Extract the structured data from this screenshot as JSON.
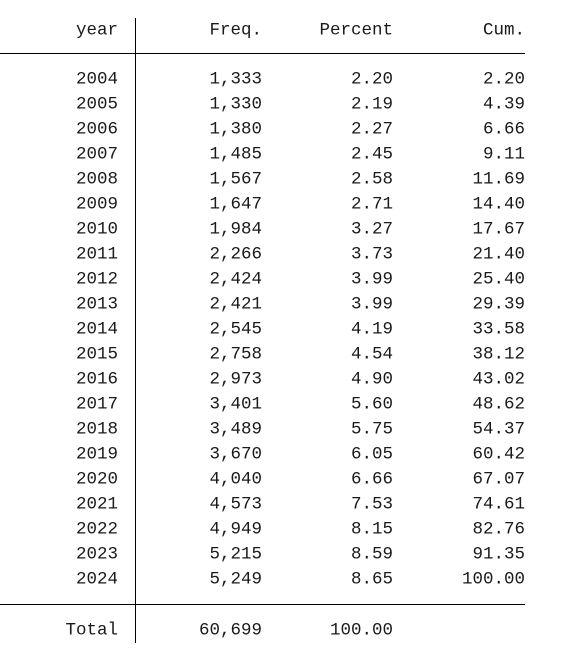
{
  "table": {
    "header": [
      "year",
      "Freq.",
      "Percent",
      "Cum."
    ],
    "rows": [
      [
        "2004",
        "1,333",
        "2.20",
        "2.20"
      ],
      [
        "2005",
        "1,330",
        "2.19",
        "4.39"
      ],
      [
        "2006",
        "1,380",
        "2.27",
        "6.66"
      ],
      [
        "2007",
        "1,485",
        "2.45",
        "9.11"
      ],
      [
        "2008",
        "1,567",
        "2.58",
        "11.69"
      ],
      [
        "2009",
        "1,647",
        "2.71",
        "14.40"
      ],
      [
        "2010",
        "1,984",
        "3.27",
        "17.67"
      ],
      [
        "2011",
        "2,266",
        "3.73",
        "21.40"
      ],
      [
        "2012",
        "2,424",
        "3.99",
        "25.40"
      ],
      [
        "2013",
        "2,421",
        "3.99",
        "29.39"
      ],
      [
        "2014",
        "2,545",
        "4.19",
        "33.58"
      ],
      [
        "2015",
        "2,758",
        "4.54",
        "38.12"
      ],
      [
        "2016",
        "2,973",
        "4.90",
        "43.02"
      ],
      [
        "2017",
        "3,401",
        "5.60",
        "48.62"
      ],
      [
        "2018",
        "3,489",
        "5.75",
        "54.37"
      ],
      [
        "2019",
        "3,670",
        "6.05",
        "60.42"
      ],
      [
        "2020",
        "4,040",
        "6.66",
        "67.07"
      ],
      [
        "2021",
        "4,573",
        "7.53",
        "74.61"
      ],
      [
        "2022",
        "4,949",
        "8.15",
        "82.76"
      ],
      [
        "2023",
        "5,215",
        "8.59",
        "91.35"
      ],
      [
        "2024",
        "5,249",
        "8.65",
        "100.00"
      ]
    ],
    "total": [
      "Total",
      "60,699",
      "100.00"
    ]
  }
}
